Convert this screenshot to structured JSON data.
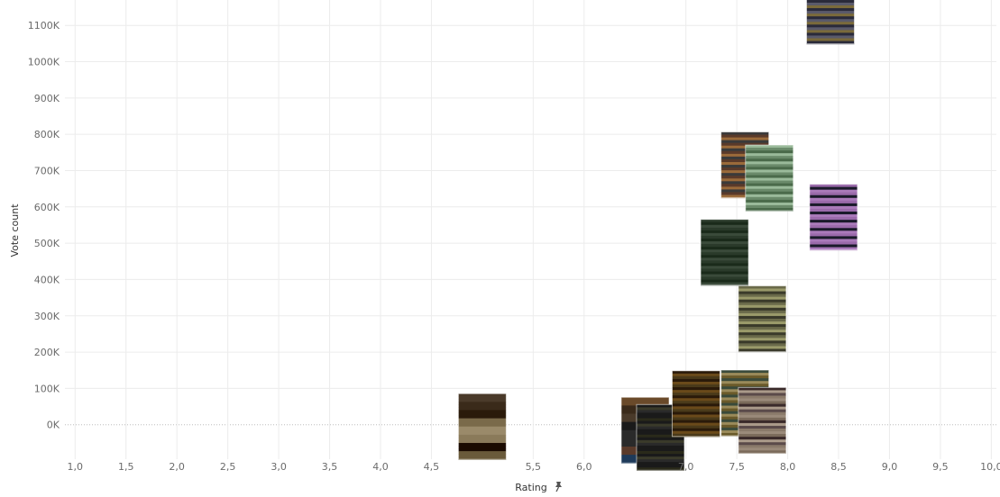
{
  "chart_data": {
    "type": "scatter",
    "xlabel": "Rating",
    "ylabel": "Vote count",
    "xlim": [
      0.9,
      10.05
    ],
    "ylim": [
      -95000,
      1170000
    ],
    "x_ticks": [
      "1,0",
      "1,5",
      "2,0",
      "2,5",
      "3,0",
      "3,5",
      "4,0",
      "4,5",
      "5,5",
      "6,0",
      "7,0",
      "7,5",
      "8,0",
      "8,5",
      "9,0",
      "9,5",
      "10,0"
    ],
    "x_tick_values": [
      1.0,
      1.5,
      2.0,
      2.5,
      3.0,
      3.5,
      4.0,
      4.5,
      5.5,
      6.0,
      7.0,
      7.5,
      8.0,
      8.5,
      9.0,
      9.5,
      10.0
    ],
    "y_ticks": [
      "0K",
      "100K",
      "200K",
      "300K",
      "400K",
      "500K",
      "600K",
      "700K",
      "800K",
      "900K",
      "1000K",
      "1100K"
    ],
    "y_tick_values": [
      0,
      100000,
      200000,
      300000,
      400000,
      500000,
      600000,
      700000,
      800000,
      900000,
      1000000,
      1100000
    ],
    "grid": true,
    "marker": "movie-poster-thumbnail",
    "points": [
      {
        "x": 5.0,
        "y": -5000,
        "colors": [
          "#4a3a2a",
          "#8a7a5a",
          "#2a1a0a",
          "#6a5a3a",
          "#9a8a6a",
          "#3a2a1a",
          "#1a0a00",
          "#7a6a4a"
        ]
      },
      {
        "x": 6.6,
        "y": -15000,
        "colors": [
          "#3a2a1a",
          "#5a3a2a",
          "#1a1a1a",
          "#6a4a2a",
          "#2a2a2a",
          "#4a3a2a",
          "#1e3a5a",
          "#2a2a2a"
        ]
      },
      {
        "x": 6.75,
        "y": -35000,
        "colors": [
          "#1a1a1a",
          "#2a2a1a",
          "#3a3a2a",
          "#1a1a1a",
          "#2a2a2a",
          "#1a1a1a"
        ]
      },
      {
        "x": 7.1,
        "y": 58000,
        "colors": [
          "#3a2a0a",
          "#5a3a1a",
          "#2a1a0a",
          "#6a4a1a",
          "#4a3a1a",
          "#1a1a0a",
          "#7a5a2a"
        ]
      },
      {
        "x": 7.58,
        "y": 60000,
        "colors": [
          "#6a5a2a",
          "#4a4a2a",
          "#8a7a4a",
          "#2a3a2a",
          "#5a4a2a",
          "#3a4a3a",
          "#9a8a5a"
        ]
      },
      {
        "x": 7.75,
        "y": 12000,
        "colors": [
          "#8a7a6a",
          "#5a4a4a",
          "#9a8a7a",
          "#3a2a2a",
          "#7a6a5a",
          "#aa9a8a"
        ]
      },
      {
        "x": 7.75,
        "y": 292000,
        "colors": [
          "#8a8a5a",
          "#4a4a3a",
          "#aaaa7a",
          "#2a2a2a",
          "#6a6a4a",
          "#9a9a6a",
          "#3a3a2a"
        ]
      },
      {
        "x": 7.38,
        "y": 475000,
        "colors": [
          "#2a3a2a",
          "#1a2a1a",
          "#3a4a3a",
          "#2a8a9a",
          "#1a1a1a",
          "#3a5a4a",
          "#4a4a3a"
        ]
      },
      {
        "x": 7.58,
        "y": 716000,
        "colors": [
          "#6a4a3a",
          "#2a1a1a",
          "#8a5a2a",
          "#3a3a3a",
          "#5a3a2a",
          "#9a6a3a",
          "#4a2a2a"
        ]
      },
      {
        "x": 7.82,
        "y": 680000,
        "colors": [
          "#6a8a6a",
          "#4a6a4a",
          "#8aaa8a",
          "#2a3a2a",
          "#5a7a5a",
          "#3a4a3a",
          "#9aba9a"
        ]
      },
      {
        "x": 8.45,
        "y": 572000,
        "colors": [
          "#7a5a8a",
          "#3a2a4a",
          "#9a6aaa",
          "#1a1a2a",
          "#aa7aba",
          "#5a3a6a",
          "#cc88cc"
        ]
      },
      {
        "x": 8.42,
        "y": 1140000,
        "colors": [
          "#2a2a3a",
          "#4a4a5a",
          "#1a1a2a",
          "#6a6a4a",
          "#3a3a4a",
          "#5a5a6a",
          "#7a6a3a"
        ]
      }
    ]
  }
}
